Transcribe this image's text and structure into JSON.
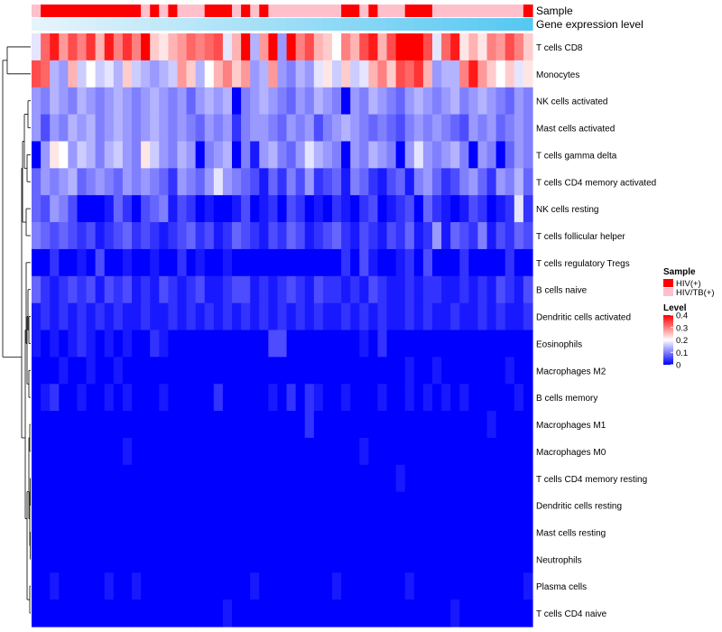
{
  "chart_data": {
    "type": "heatmap",
    "title": "",
    "colors": {
      "low": "#0000ff",
      "mid": "#ffffff",
      "high": "#ff0000",
      "hiv": "#ff0000",
      "hivtb": "#ffc0cb",
      "expr_light": "#e6f4fb",
      "expr_dark": "#56c8f2"
    },
    "scale": {
      "min": 0,
      "max": 0.4,
      "mid": 0.2
    },
    "annotation_tracks": {
      "sample_label": "Sample",
      "expression_label": "Gene expression level"
    },
    "sample_groups": [
      "HIV/TB(+)",
      "HIV(+)",
      "HIV(+)",
      "HIV(+)",
      "HIV(+)",
      "HIV(+)",
      "HIV(+)",
      "HIV(+)",
      "HIV(+)",
      "HIV(+)",
      "HIV(+)",
      "HIV(+)",
      "HIV/TB(+)",
      "HIV(+)",
      "HIV/TB(+)",
      "HIV(+)",
      "HIV/TB(+)",
      "HIV/TB(+)",
      "HIV/TB(+)",
      "HIV(+)",
      "HIV(+)",
      "HIV(+)",
      "HIV/TB(+)",
      "HIV(+)",
      "HIV/TB(+)",
      "HIV(+)",
      "HIV/TB(+)",
      "HIV/TB(+)",
      "HIV/TB(+)",
      "HIV/TB(+)",
      "HIV/TB(+)",
      "HIV/TB(+)",
      "HIV/TB(+)",
      "HIV/TB(+)",
      "HIV(+)",
      "HIV(+)",
      "HIV/TB(+)",
      "HIV(+)",
      "HIV/TB(+)",
      "HIV/TB(+)",
      "HIV/TB(+)",
      "HIV(+)",
      "HIV(+)",
      "HIV(+)",
      "HIV/TB(+)",
      "HIV/TB(+)",
      "HIV/TB(+)",
      "HIV/TB(+)",
      "HIV/TB(+)",
      "HIV/TB(+)",
      "HIV/TB(+)",
      "HIV/TB(+)",
      "HIV/TB(+)",
      "HIV/TB(+)",
      "HIV(+)"
    ],
    "rows": [
      "T cells CD8",
      "Monocytes",
      "NK cells activated",
      "Mast cells activated",
      "T cells gamma delta",
      "T cells CD4 memory activated",
      "NK cells resting",
      "T cells follicular helper",
      "T cells regulatory  Tregs",
      "B cells naive",
      "Dendritic cells activated",
      "Eosinophils",
      "Macrophages M2",
      "B cells memory",
      "Macrophages M1",
      "Macrophages M0",
      "T cells CD4 memory resting",
      "Dendritic cells resting",
      "Mast cells resting",
      "Neutrophils",
      "Plasma cells",
      "T cells CD4 naive"
    ],
    "values": [
      [
        0.18,
        0.32,
        0.38,
        0.28,
        0.34,
        0.3,
        0.36,
        0.26,
        0.38,
        0.3,
        0.36,
        0.3,
        0.4,
        0.24,
        0.22,
        0.26,
        0.28,
        0.32,
        0.3,
        0.32,
        0.34,
        0.18,
        0.26,
        0.4,
        0.14,
        0.28,
        0.4,
        0.12,
        0.4,
        0.3,
        0.34,
        0.26,
        0.24,
        0.2,
        0.3,
        0.26,
        0.34,
        0.38,
        0.26,
        0.34,
        0.4,
        0.4,
        0.4,
        0.34,
        0.18,
        0.32,
        0.38,
        0.22,
        0.26,
        0.22,
        0.3,
        0.28,
        0.34,
        0.3,
        0.24
      ],
      [
        0.34,
        0.32,
        0.14,
        0.12,
        0.26,
        0.16,
        0.2,
        0.16,
        0.18,
        0.14,
        0.24,
        0.16,
        0.14,
        0.12,
        0.14,
        0.16,
        0.28,
        0.24,
        0.14,
        0.2,
        0.26,
        0.3,
        0.24,
        0.28,
        0.12,
        0.14,
        0.28,
        0.12,
        0.1,
        0.14,
        0.12,
        0.18,
        0.22,
        0.16,
        0.24,
        0.16,
        0.18,
        0.26,
        0.3,
        0.24,
        0.34,
        0.32,
        0.36,
        0.26,
        0.12,
        0.14,
        0.14,
        0.3,
        0.38,
        0.28,
        0.24,
        0.2,
        0.24,
        0.18,
        0.22
      ],
      [
        0.12,
        0.1,
        0.14,
        0.12,
        0.1,
        0.14,
        0.12,
        0.1,
        0.12,
        0.14,
        0.12,
        0.1,
        0.12,
        0.14,
        0.12,
        0.1,
        0.12,
        0.08,
        0.12,
        0.14,
        0.12,
        0.14,
        0.0,
        0.1,
        0.12,
        0.14,
        0.12,
        0.1,
        0.08,
        0.12,
        0.1,
        0.14,
        0.12,
        0.1,
        0.0,
        0.12,
        0.1,
        0.14,
        0.12,
        0.1,
        0.08,
        0.12,
        0.14,
        0.12,
        0.1,
        0.12,
        0.14,
        0.1,
        0.12,
        0.14,
        0.12,
        0.1,
        0.08,
        0.12,
        0.1
      ],
      [
        0.12,
        0.06,
        0.12,
        0.1,
        0.14,
        0.12,
        0.14,
        0.1,
        0.12,
        0.14,
        0.12,
        0.1,
        0.12,
        0.14,
        0.12,
        0.1,
        0.12,
        0.1,
        0.08,
        0.12,
        0.1,
        0.12,
        0.04,
        0.1,
        0.12,
        0.12,
        0.1,
        0.08,
        0.12,
        0.1,
        0.12,
        0.06,
        0.1,
        0.12,
        0.14,
        0.12,
        0.1,
        0.08,
        0.1,
        0.08,
        0.06,
        0.1,
        0.12,
        0.1,
        0.12,
        0.1,
        0.08,
        0.06,
        0.12,
        0.1,
        0.12,
        0.08,
        0.1,
        0.12,
        0.1
      ],
      [
        0.0,
        0.12,
        0.22,
        0.2,
        0.12,
        0.16,
        0.14,
        0.1,
        0.14,
        0.16,
        0.12,
        0.1,
        0.22,
        0.16,
        0.12,
        0.1,
        0.14,
        0.12,
        0.0,
        0.1,
        0.12,
        0.14,
        0.0,
        0.1,
        0.02,
        0.12,
        0.14,
        0.1,
        0.08,
        0.12,
        0.18,
        0.14,
        0.12,
        0.1,
        0.0,
        0.12,
        0.1,
        0.14,
        0.12,
        0.1,
        0.0,
        0.12,
        0.18,
        0.12,
        0.1,
        0.12,
        0.14,
        0.1,
        0.0,
        0.12,
        0.1,
        0.0,
        0.08,
        0.12,
        0.1
      ],
      [
        0.08,
        0.12,
        0.1,
        0.12,
        0.14,
        0.08,
        0.1,
        0.12,
        0.1,
        0.08,
        0.12,
        0.1,
        0.12,
        0.1,
        0.08,
        0.04,
        0.12,
        0.1,
        0.08,
        0.12,
        0.18,
        0.12,
        0.1,
        0.08,
        0.06,
        0.02,
        0.08,
        0.04,
        0.1,
        0.06,
        0.12,
        0.04,
        0.06,
        0.08,
        0.02,
        0.1,
        0.08,
        0.04,
        0.02,
        0.06,
        0.08,
        0.02,
        0.1,
        0.12,
        0.08,
        0.04,
        0.06,
        0.1,
        0.12,
        0.08,
        0.04,
        0.12,
        0.1,
        0.14,
        0.08
      ],
      [
        0.08,
        0.06,
        0.12,
        0.1,
        0.06,
        0.0,
        0.0,
        0.0,
        0.02,
        0.08,
        0.04,
        0.0,
        0.06,
        0.08,
        0.1,
        0.02,
        0.06,
        0.04,
        0.0,
        0.02,
        0.0,
        0.0,
        0.02,
        0.06,
        0.0,
        0.02,
        0.04,
        0.0,
        0.06,
        0.04,
        0.0,
        0.02,
        0.0,
        0.04,
        0.02,
        0.0,
        0.04,
        0.06,
        0.0,
        0.02,
        0.04,
        0.06,
        0.0,
        0.08,
        0.04,
        0.02,
        0.0,
        0.02,
        0.06,
        0.04,
        0.0,
        0.02,
        0.04,
        0.18,
        0.04
      ],
      [
        0.1,
        0.08,
        0.06,
        0.08,
        0.06,
        0.04,
        0.06,
        0.02,
        0.04,
        0.06,
        0.08,
        0.04,
        0.06,
        0.04,
        0.02,
        0.04,
        0.06,
        0.08,
        0.04,
        0.06,
        0.02,
        0.04,
        0.08,
        0.06,
        0.04,
        0.02,
        0.06,
        0.04,
        0.08,
        0.06,
        0.02,
        0.04,
        0.06,
        0.08,
        0.04,
        0.02,
        0.06,
        0.04,
        0.02,
        0.06,
        0.04,
        0.08,
        0.02,
        0.04,
        0.12,
        0.02,
        0.08,
        0.06,
        0.04,
        0.1,
        0.02,
        0.06,
        0.04,
        0.08,
        0.06
      ],
      [
        0.0,
        0.0,
        0.04,
        0.0,
        0.0,
        0.02,
        0.0,
        0.06,
        0.0,
        0.0,
        0.02,
        0.0,
        0.0,
        0.02,
        0.0,
        0.0,
        0.04,
        0.0,
        0.02,
        0.0,
        0.0,
        0.02,
        0.0,
        0.0,
        0.0,
        0.0,
        0.0,
        0.0,
        0.0,
        0.0,
        0.0,
        0.0,
        0.0,
        0.0,
        0.04,
        0.0,
        0.06,
        0.02,
        0.0,
        0.0,
        0.02,
        0.04,
        0.0,
        0.06,
        0.0,
        0.0,
        0.0,
        0.04,
        0.0,
        0.0,
        0.0,
        0.0,
        0.04,
        0.0,
        0.0
      ],
      [
        0.08,
        0.04,
        0.02,
        0.04,
        0.06,
        0.04,
        0.06,
        0.02,
        0.06,
        0.04,
        0.06,
        0.02,
        0.04,
        0.02,
        0.06,
        0.04,
        0.02,
        0.04,
        0.06,
        0.02,
        0.02,
        0.04,
        0.06,
        0.06,
        0.02,
        0.04,
        0.02,
        0.04,
        0.06,
        0.04,
        0.02,
        0.06,
        0.04,
        0.04,
        0.02,
        0.04,
        0.02,
        0.06,
        0.04,
        0.02,
        0.02,
        0.04,
        0.02,
        0.04,
        0.04,
        0.02,
        0.02,
        0.04,
        0.02,
        0.04,
        0.02,
        0.06,
        0.04,
        0.02,
        0.06
      ],
      [
        0.02,
        0.04,
        0.02,
        0.04,
        0.02,
        0.04,
        0.02,
        0.04,
        0.02,
        0.04,
        0.02,
        0.02,
        0.04,
        0.02,
        0.02,
        0.04,
        0.02,
        0.04,
        0.02,
        0.04,
        0.02,
        0.04,
        0.02,
        0.04,
        0.02,
        0.04,
        0.02,
        0.04,
        0.02,
        0.04,
        0.02,
        0.04,
        0.02,
        0.02,
        0.04,
        0.02,
        0.04,
        0.02,
        0.04,
        0.02,
        0.02,
        0.04,
        0.02,
        0.04,
        0.02,
        0.02,
        0.04,
        0.02,
        0.02,
        0.04,
        0.02,
        0.04,
        0.02,
        0.02,
        0.04
      ],
      [
        0.02,
        0.0,
        0.02,
        0.0,
        0.02,
        0.04,
        0.02,
        0.0,
        0.02,
        0.0,
        0.02,
        0.0,
        0.0,
        0.04,
        0.02,
        0.0,
        0.0,
        0.0,
        0.0,
        0.0,
        0.0,
        0.0,
        0.0,
        0.0,
        0.0,
        0.0,
        0.06,
        0.06,
        0.0,
        0.0,
        0.0,
        0.0,
        0.0,
        0.0,
        0.0,
        0.0,
        0.02,
        0.0,
        0.04,
        0.0,
        0.0,
        0.0,
        0.0,
        0.0,
        0.0,
        0.0,
        0.0,
        0.0,
        0.0,
        0.0,
        0.0,
        0.0,
        0.0,
        0.0,
        0.0
      ],
      [
        0.0,
        0.0,
        0.0,
        0.02,
        0.0,
        0.0,
        0.02,
        0.0,
        0.0,
        0.02,
        0.0,
        0.0,
        0.0,
        0.0,
        0.0,
        0.0,
        0.0,
        0.0,
        0.0,
        0.0,
        0.0,
        0.0,
        0.0,
        0.0,
        0.0,
        0.0,
        0.0,
        0.0,
        0.0,
        0.0,
        0.0,
        0.0,
        0.0,
        0.0,
        0.0,
        0.0,
        0.0,
        0.0,
        0.0,
        0.0,
        0.0,
        0.02,
        0.0,
        0.0,
        0.02,
        0.0,
        0.0,
        0.0,
        0.0,
        0.0,
        0.0,
        0.0,
        0.02,
        0.0,
        0.0
      ],
      [
        0.0,
        0.02,
        0.04,
        0.0,
        0.0,
        0.02,
        0.0,
        0.0,
        0.02,
        0.0,
        0.02,
        0.0,
        0.0,
        0.0,
        0.02,
        0.0,
        0.0,
        0.0,
        0.0,
        0.0,
        0.04,
        0.0,
        0.0,
        0.0,
        0.0,
        0.0,
        0.02,
        0.0,
        0.04,
        0.0,
        0.04,
        0.02,
        0.0,
        0.0,
        0.02,
        0.0,
        0.0,
        0.0,
        0.02,
        0.0,
        0.0,
        0.02,
        0.0,
        0.02,
        0.0,
        0.02,
        0.0,
        0.02,
        0.0,
        0.0,
        0.0,
        0.0,
        0.0,
        0.02,
        0.0
      ],
      [
        0.0,
        0.0,
        0.0,
        0.0,
        0.0,
        0.0,
        0.0,
        0.0,
        0.0,
        0.0,
        0.0,
        0.0,
        0.0,
        0.0,
        0.0,
        0.0,
        0.0,
        0.0,
        0.0,
        0.0,
        0.0,
        0.0,
        0.0,
        0.0,
        0.0,
        0.0,
        0.0,
        0.0,
        0.0,
        0.0,
        0.04,
        0.0,
        0.0,
        0.0,
        0.0,
        0.0,
        0.0,
        0.0,
        0.0,
        0.0,
        0.0,
        0.0,
        0.0,
        0.0,
        0.0,
        0.0,
        0.0,
        0.0,
        0.0,
        0.0,
        0.02,
        0.0,
        0.0,
        0.0,
        0.0
      ],
      [
        0.0,
        0.0,
        0.0,
        0.0,
        0.0,
        0.0,
        0.0,
        0.0,
        0.0,
        0.0,
        0.02,
        0.0,
        0.0,
        0.0,
        0.0,
        0.0,
        0.0,
        0.0,
        0.0,
        0.0,
        0.0,
        0.0,
        0.0,
        0.0,
        0.0,
        0.0,
        0.0,
        0.0,
        0.0,
        0.0,
        0.0,
        0.0,
        0.0,
        0.0,
        0.0,
        0.0,
        0.02,
        0.0,
        0.0,
        0.0,
        0.0,
        0.0,
        0.0,
        0.0,
        0.0,
        0.0,
        0.0,
        0.0,
        0.0,
        0.0,
        0.0,
        0.0,
        0.0,
        0.0,
        0.0
      ],
      [
        0.0,
        0.0,
        0.0,
        0.0,
        0.0,
        0.0,
        0.0,
        0.0,
        0.0,
        0.0,
        0.0,
        0.0,
        0.0,
        0.0,
        0.0,
        0.0,
        0.0,
        0.0,
        0.0,
        0.0,
        0.0,
        0.0,
        0.0,
        0.0,
        0.0,
        0.0,
        0.0,
        0.0,
        0.0,
        0.0,
        0.0,
        0.0,
        0.0,
        0.0,
        0.0,
        0.0,
        0.0,
        0.0,
        0.0,
        0.0,
        0.02,
        0.0,
        0.0,
        0.0,
        0.0,
        0.0,
        0.0,
        0.0,
        0.0,
        0.0,
        0.0,
        0.0,
        0.0,
        0.0,
        0.0
      ],
      [
        0.0,
        0.0,
        0.0,
        0.0,
        0.0,
        0.0,
        0.0,
        0.0,
        0.0,
        0.0,
        0.0,
        0.0,
        0.0,
        0.0,
        0.0,
        0.0,
        0.0,
        0.0,
        0.0,
        0.0,
        0.0,
        0.0,
        0.0,
        0.0,
        0.0,
        0.0,
        0.0,
        0.0,
        0.0,
        0.0,
        0.0,
        0.0,
        0.0,
        0.0,
        0.0,
        0.0,
        0.0,
        0.0,
        0.0,
        0.0,
        0.0,
        0.0,
        0.0,
        0.0,
        0.0,
        0.0,
        0.0,
        0.0,
        0.0,
        0.0,
        0.0,
        0.0,
        0.0,
        0.0,
        0.0
      ],
      [
        0.0,
        0.0,
        0.0,
        0.0,
        0.0,
        0.0,
        0.0,
        0.0,
        0.0,
        0.0,
        0.0,
        0.0,
        0.0,
        0.0,
        0.0,
        0.0,
        0.0,
        0.0,
        0.0,
        0.0,
        0.0,
        0.0,
        0.0,
        0.0,
        0.0,
        0.0,
        0.0,
        0.0,
        0.0,
        0.0,
        0.0,
        0.0,
        0.0,
        0.0,
        0.0,
        0.0,
        0.0,
        0.0,
        0.0,
        0.0,
        0.0,
        0.0,
        0.0,
        0.0,
        0.0,
        0.0,
        0.0,
        0.0,
        0.0,
        0.0,
        0.0,
        0.0,
        0.0,
        0.0,
        0.0
      ],
      [
        0.0,
        0.0,
        0.0,
        0.0,
        0.0,
        0.0,
        0.0,
        0.0,
        0.0,
        0.0,
        0.0,
        0.0,
        0.0,
        0.0,
        0.0,
        0.0,
        0.0,
        0.0,
        0.0,
        0.0,
        0.0,
        0.0,
        0.0,
        0.0,
        0.0,
        0.0,
        0.0,
        0.0,
        0.0,
        0.0,
        0.0,
        0.0,
        0.0,
        0.0,
        0.0,
        0.0,
        0.0,
        0.0,
        0.0,
        0.0,
        0.0,
        0.0,
        0.0,
        0.0,
        0.0,
        0.0,
        0.0,
        0.0,
        0.0,
        0.0,
        0.0,
        0.0,
        0.0,
        0.0,
        0.0
      ],
      [
        0.0,
        0.0,
        0.02,
        0.0,
        0.0,
        0.0,
        0.0,
        0.0,
        0.02,
        0.0,
        0.0,
        0.02,
        0.0,
        0.0,
        0.0,
        0.0,
        0.0,
        0.0,
        0.0,
        0.0,
        0.0,
        0.0,
        0.0,
        0.0,
        0.02,
        0.0,
        0.0,
        0.0,
        0.0,
        0.0,
        0.0,
        0.0,
        0.0,
        0.02,
        0.0,
        0.0,
        0.0,
        0.0,
        0.0,
        0.0,
        0.0,
        0.02,
        0.0,
        0.0,
        0.0,
        0.0,
        0.0,
        0.0,
        0.0,
        0.0,
        0.0,
        0.0,
        0.0,
        0.0,
        0.02
      ],
      [
        0.0,
        0.0,
        0.0,
        0.0,
        0.0,
        0.0,
        0.0,
        0.0,
        0.0,
        0.0,
        0.0,
        0.0,
        0.0,
        0.0,
        0.0,
        0.0,
        0.0,
        0.0,
        0.0,
        0.0,
        0.0,
        0.02,
        0.0,
        0.0,
        0.0,
        0.0,
        0.0,
        0.0,
        0.0,
        0.0,
        0.0,
        0.0,
        0.0,
        0.0,
        0.0,
        0.0,
        0.0,
        0.0,
        0.0,
        0.0,
        0.0,
        0.0,
        0.0,
        0.0,
        0.0,
        0.0,
        0.02,
        0.0,
        0.0,
        0.0,
        0.0,
        0.0,
        0.0,
        0.0,
        0.0
      ]
    ],
    "legend": {
      "sample_title": "Sample",
      "sample_entries": [
        {
          "label": "HIV(+)",
          "color": "#ff0000"
        },
        {
          "label": "HIV/TB(+)",
          "color": "#ffc0cb"
        }
      ],
      "level_title": "Level",
      "level_ticks": [
        {
          "label": "0.4",
          "value": 0.4
        },
        {
          "label": "0.3",
          "value": 0.3
        },
        {
          "label": "0.2",
          "value": 0.2
        },
        {
          "label": "0.1",
          "value": 0.1
        },
        {
          "label": "0",
          "value": 0.0
        }
      ]
    }
  }
}
